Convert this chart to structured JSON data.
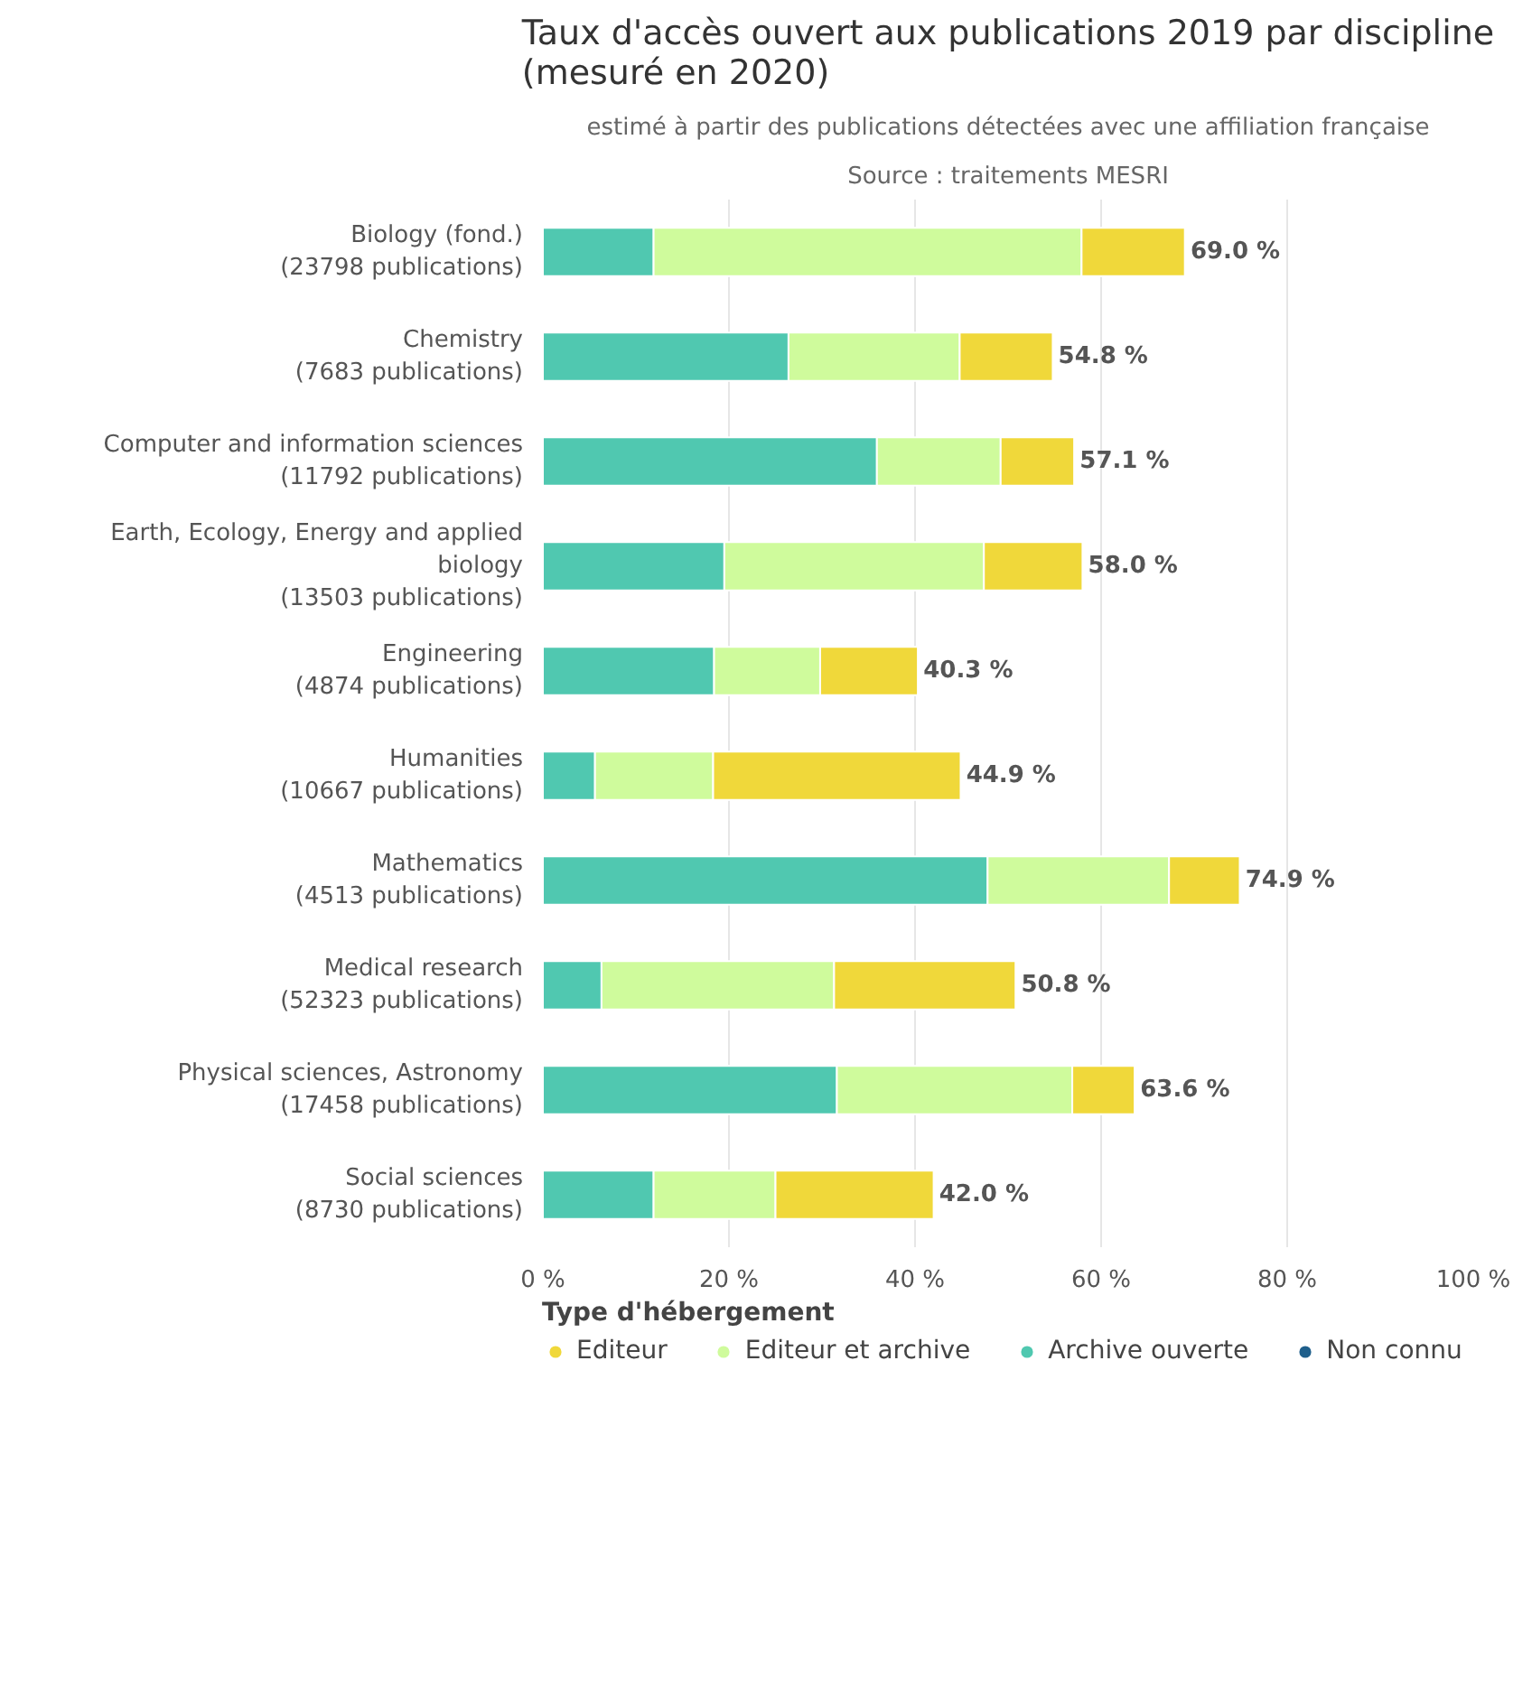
{
  "chart_data": {
    "type": "bar",
    "orientation": "horizontal",
    "stacked": true,
    "title": "Taux d'accès ouvert aux publications 2019 par discipline (mesuré en 2020)",
    "subtitle": "estimé à partir des publications détectées avec une affiliation française",
    "annotations": [
      "Source : traitements MESRI"
    ],
    "categories": [
      "Biology (fond.) (23798 publications)",
      "Chemistry (7683 publications)",
      "Computer and information sciences (11792 publications)",
      "Earth, Ecology, Energy and applied biology (13503 publications)",
      "Engineering (4874 publications)",
      "Humanities (10667 publications)",
      "Mathematics (4513 publications)",
      "Medical research (52323 publications)",
      "Physical sciences, Astronomy (17458 publications)",
      "Social sciences (8730 publications)"
    ],
    "series": [
      {
        "name": "Non connu",
        "color": "#1f5f8b",
        "values": [
          null,
          null,
          null,
          null,
          null,
          null,
          null,
          null,
          null,
          null
        ]
      },
      {
        "name": "Archive ouverte",
        "color": "#50c8b0",
        "values": [
          11.9,
          26.4,
          35.9,
          19.5,
          18.4,
          5.6,
          47.8,
          6.3,
          31.6,
          11.9
        ]
      },
      {
        "name": "Editeur et archive",
        "color": "#cffb9c",
        "values": [
          46.0,
          18.4,
          13.3,
          27.9,
          11.4,
          12.7,
          19.5,
          25.0,
          25.3,
          13.1
        ]
      },
      {
        "name": "Editeur",
        "color": "#f0d83a",
        "values": [
          11.1,
          10.0,
          7.9,
          10.6,
          10.5,
          26.6,
          7.6,
          19.5,
          6.7,
          17.0
        ]
      }
    ],
    "totals": [
      "69.0 %",
      "54.8 %",
      "57.1 %",
      "58.0 %",
      "40.3 %",
      "44.9 %",
      "74.9 %",
      "50.8 %",
      "63.6 %",
      "42.0 %"
    ],
    "xlim": [
      0,
      100
    ],
    "xticks": [
      {
        "value": 0,
        "label": "0 %"
      },
      {
        "value": 20,
        "label": "20 %"
      },
      {
        "value": 40,
        "label": "40 %"
      },
      {
        "value": 60,
        "label": "60 %"
      },
      {
        "value": 80,
        "label": "80 %"
      },
      {
        "value": 100,
        "label": "100 %"
      }
    ],
    "grid": "x",
    "legend": "bottom",
    "legend_title": "Type d'hébergement"
  }
}
